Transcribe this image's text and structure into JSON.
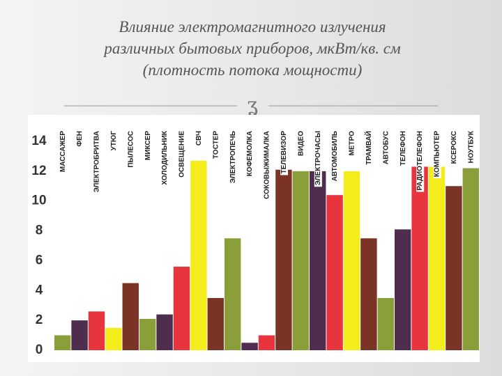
{
  "chart_data": {
    "type": "bar",
    "title": [
      "Влияние электромагнитного излучения",
      "различных бытовых приборов, мкВт/кв. см",
      "(плотность потока мощности)"
    ],
    "categories": [
      "МАССАЖЕР",
      "ФЕН",
      "ЭЛЕКТРОБРИТВА",
      "УТЮГ",
      "ПЫЛЕСОС",
      "МИКСЕР",
      "ХОЛОДИЛЬНИК",
      "ОСВЕЩЕНИЕ",
      "СВЧ",
      "ТОСТЕР",
      "ЭЛЕКТРОПЕЧЬ",
      "КОФЕМОЛКА",
      "СОКОВЫЖИМАЛКА",
      "ТЕЛЕВИЗОР",
      "ВИДЕО",
      "ЭЛЕКТРОЧАСЫ",
      "АВТОМОБИЛЬ",
      "МЕТРО",
      "ТРАМВАЙ",
      "АВТОБУС",
      "ТЕЛЕФОН",
      "РАДИОТЕЛЕФОН",
      "КОМПЬЮТЕР",
      "КСЕРОКС",
      "НОУТБУК"
    ],
    "values": [
      1.0,
      2.0,
      2.6,
      1.5,
      4.5,
      2.1,
      2.4,
      5.6,
      12.7,
      3.5,
      7.5,
      0.5,
      1.0,
      12.1,
      12.0,
      12.0,
      10.4,
      12.0,
      7.5,
      3.5,
      8.1,
      12.3,
      12.3,
      11.0,
      12.2
    ],
    "colors": [
      "#8a9e3a",
      "#4e2d4e",
      "#e8343c",
      "#f5ec1c",
      "#7a3325",
      "#8a9e3a",
      "#4e2d4e",
      "#e8343c",
      "#f5ec1c",
      "#7a3325",
      "#8a9e3a",
      "#4e2d4e",
      "#e8343c",
      "#7a3325",
      "#8a9e3a",
      "#4e2d4e",
      "#e8343c",
      "#f5ec1c",
      "#7a3325",
      "#8a9e3a",
      "#4e2d4e",
      "#e8343c",
      "#f5ec1c",
      "#7a3325",
      "#8a9e3a"
    ],
    "ylim": [
      0,
      14
    ],
    "yticks": [
      0,
      2,
      4,
      6,
      8,
      10,
      12,
      14
    ],
    "grid": false
  }
}
